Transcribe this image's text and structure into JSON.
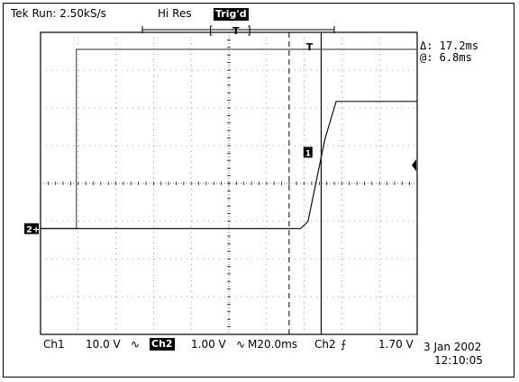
{
  "header": {
    "run_status": "Tek Run: 2.50kS/s",
    "acq_mode": "Hi Res",
    "trig_status": "Trig'd"
  },
  "cursor_readout": {
    "delta": "Δ: 17.2ms",
    "at": "@: 6.8ms"
  },
  "markers": {
    "trigger_level": "T",
    "ch1_marker": "1",
    "ch2_marker": "2",
    "ch2_ground": "2+"
  },
  "status_bar": {
    "ch1_label": "Ch1",
    "ch1_scale": "10.0 V",
    "ch2_label": "Ch2",
    "ch2_scale": "1.00 V",
    "timebase": "M20.0ms",
    "trigger_source": "Ch2",
    "trigger_slope": "⨍",
    "trigger_level": "1.70 V",
    "date": "3 Jan 2002",
    "time": "12:10:05"
  },
  "chart_data": {
    "type": "line",
    "grid": true,
    "divisions": {
      "x": 10,
      "y": 8
    },
    "time_per_div_ms": 20,
    "series": [
      {
        "name": "Ch1",
        "volts_per_div": 10.0,
        "points_div": [
          [
            0,
            0
          ],
          [
            0.95,
            0
          ],
          [
            0.95,
            5.0
          ],
          [
            10,
            5.0
          ]
        ]
      },
      {
        "name": "Ch2",
        "volts_per_div": 1.0,
        "points_div": [
          [
            0,
            0
          ],
          [
            6.9,
            0
          ],
          [
            7.1,
            0.2
          ],
          [
            7.55,
            2.5
          ],
          [
            7.85,
            3.55
          ],
          [
            10,
            3.55
          ]
        ]
      }
    ],
    "cursors": {
      "delta_ms": 17.2,
      "at_ms": 6.8
    }
  }
}
